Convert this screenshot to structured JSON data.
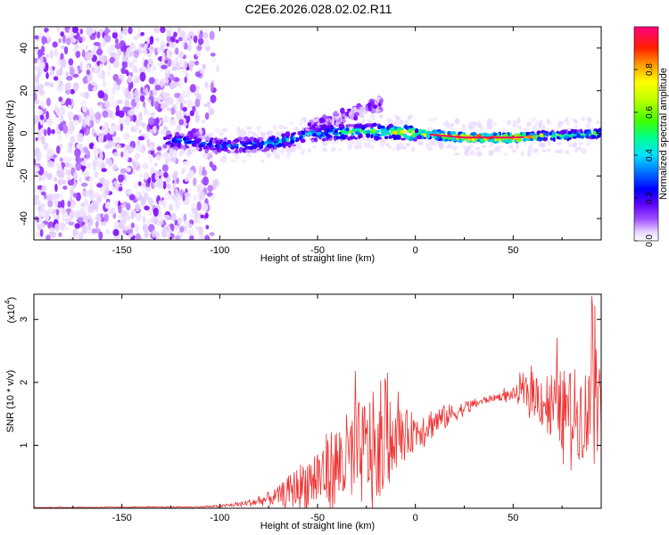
{
  "figure_title": "C2E6.2026.028.02.02.R11",
  "chart_data": [
    {
      "type": "heatmap",
      "title": "C2E6.2026.028.02.02.R11",
      "xlabel": "Height of straight line (km)",
      "ylabel": "Frequency (Hz)",
      "xlim": [
        -195,
        95
      ],
      "ylim": [
        -50,
        50
      ],
      "xticks": [
        -150,
        -100,
        -50,
        0,
        50
      ],
      "yticks": [
        -40,
        -20,
        0,
        20,
        40
      ],
      "xtick_labels": [
        "-150",
        "-100",
        "-50",
        "0",
        "50"
      ],
      "ytick_labels": [
        "-40",
        "-20",
        "0",
        "20",
        "40"
      ],
      "colorbar": {
        "label": "Normalized spectral amplitude",
        "range": [
          0,
          1
        ],
        "ticks": [
          0.0,
          0.2,
          0.4,
          0.6,
          0.8
        ],
        "tick_labels": [
          "0.0",
          "0.2",
          "0.4",
          "0.6",
          "0.8"
        ],
        "colormap": [
          "#ffffff",
          "#e0c8ff",
          "#7a00ff",
          "#0000ff",
          "#00c8ff",
          "#00ff80",
          "#80ff00",
          "#ffff00",
          "#ff8000",
          "#ff0000",
          "#ff0080"
        ]
      },
      "description_points": {
        "noise_region_x": [
          -195,
          -100
        ],
        "band_center_freq_x": [
          -125,
          -100,
          -75,
          -50,
          -25,
          0,
          25,
          50,
          75,
          95
        ],
        "band_center_freq_y": [
          -3,
          -6,
          -5,
          0,
          1,
          0,
          -2,
          -2,
          -1,
          0
        ],
        "band_amplitude": [
          0.4,
          0.35,
          0.45,
          0.45,
          0.6,
          0.75,
          0.95,
          0.95,
          0.6,
          0.55
        ]
      }
    },
    {
      "type": "line",
      "xlabel": "Height of straight line (km)",
      "ylabel": "SNR (10 * v/v)",
      "scale_label": "(x10",
      "scale_exponent": "4",
      "xlim": [
        -195,
        95
      ],
      "ylim": [
        0,
        3.4
      ],
      "xticks": [
        -150,
        -100,
        -50,
        0,
        50
      ],
      "yticks": [
        1,
        2,
        3
      ],
      "xtick_labels": [
        "-150",
        "-100",
        "-50",
        "0",
        "50"
      ],
      "ytick_labels": [
        "1",
        "2",
        "3"
      ],
      "line_color": "#ee3333",
      "envelope_x": [
        -195,
        -110,
        -100,
        -90,
        -80,
        -70,
        -60,
        -50,
        -40,
        -30,
        -20,
        -10,
        0,
        10,
        20,
        30,
        40,
        50,
        60,
        70,
        80,
        90,
        95
      ],
      "envelope_y": [
        0.01,
        0.02,
        0.03,
        0.06,
        0.1,
        0.18,
        0.3,
        0.45,
        0.6,
        0.75,
        0.9,
        1.05,
        1.2,
        1.35,
        1.5,
        1.65,
        1.75,
        1.8,
        1.8,
        1.55,
        1.45,
        1.4,
        1.45
      ],
      "noise_amp_y": [
        0.005,
        0.01,
        0.02,
        0.04,
        0.08,
        0.15,
        0.35,
        0.55,
        0.7,
        0.85,
        0.9,
        0.5,
        0.3,
        0.25,
        0.15,
        0.08,
        0.05,
        0.1,
        0.35,
        0.6,
        0.7,
        0.8,
        0.9
      ]
    }
  ]
}
